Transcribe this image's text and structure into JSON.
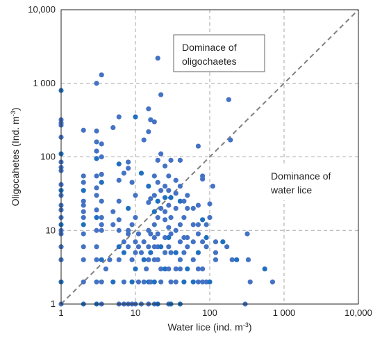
{
  "chart_data": {
    "type": "scatter",
    "title": "",
    "xlabel": "Water lice (ind. m",
    "xlabel_sup": "-3",
    "xlabel_end": ")",
    "ylabel": "Oligocahetes (Ind. m",
    "ylabel_sup": "-3",
    "ylabel_end": ")",
    "xscale": "log",
    "yscale": "log",
    "xlim": [
      1,
      10000
    ],
    "ylim": [
      1,
      10000
    ],
    "grid": "dashed",
    "x_ticks": [
      {
        "value": 1,
        "label": "1"
      },
      {
        "value": 10,
        "label": "10"
      },
      {
        "value": 100,
        "label": "100"
      },
      {
        "value": 1000,
        "label": "1 000"
      },
      {
        "value": 10000,
        "label": "10,000"
      }
    ],
    "y_ticks": [
      {
        "value": 1,
        "label": "1"
      },
      {
        "value": 10,
        "label": "10"
      },
      {
        "value": 100,
        "label": "100"
      },
      {
        "value": 1000,
        "label": "1 000"
      },
      {
        "value": 10000,
        "label": "10,000"
      }
    ],
    "reference_line": {
      "type": "1:1",
      "style": "dashed",
      "color": "#808080"
    },
    "annotations": [
      {
        "lines": [
          "Dominace of",
          "oligochaetes"
        ],
        "boxed": true
      },
      {
        "lines": [
          "Dominance of",
          "water lice"
        ],
        "boxed": false
      }
    ],
    "marker_color": "#4472c4",
    "marker_color_alt": "#1f6fc0",
    "series": [
      {
        "points": [
          [
            1,
            800
          ],
          [
            1,
            320
          ],
          [
            1,
            290
          ],
          [
            1,
            270
          ],
          [
            1,
            185
          ],
          [
            1,
            110
          ],
          [
            1,
            85
          ],
          [
            1,
            72
          ],
          [
            1,
            65
          ],
          [
            1,
            42
          ],
          [
            1,
            35
          ],
          [
            1,
            30
          ],
          [
            1,
            22
          ],
          [
            1,
            19
          ],
          [
            1,
            15
          ],
          [
            1,
            12
          ],
          [
            1,
            10
          ],
          [
            1,
            9
          ],
          [
            1,
            6
          ],
          [
            1,
            4
          ],
          [
            1,
            2
          ],
          [
            1,
            1
          ],
          [
            2,
            230
          ],
          [
            2,
            55
          ],
          [
            2,
            45
          ],
          [
            2,
            35
          ],
          [
            2,
            25
          ],
          [
            2,
            22
          ],
          [
            2,
            18
          ],
          [
            2,
            15
          ],
          [
            2,
            12
          ],
          [
            2,
            9
          ],
          [
            2,
            6
          ],
          [
            2,
            4
          ],
          [
            2,
            2
          ],
          [
            2,
            1
          ],
          [
            3,
            1000
          ],
          [
            3,
            225
          ],
          [
            3,
            160
          ],
          [
            3,
            120
          ],
          [
            3,
            95
          ],
          [
            3,
            55
          ],
          [
            3,
            38
          ],
          [
            3,
            30
          ],
          [
            3,
            19
          ],
          [
            3,
            15
          ],
          [
            3,
            10
          ],
          [
            3,
            6
          ],
          [
            3,
            4
          ],
          [
            3,
            2
          ],
          [
            3,
            1
          ],
          [
            3.5,
            1300
          ],
          [
            3.5,
            150
          ],
          [
            3.5,
            100
          ],
          [
            3.5,
            58
          ],
          [
            3.5,
            45
          ],
          [
            3.5,
            25
          ],
          [
            3.5,
            15
          ],
          [
            3.5,
            12
          ],
          [
            3.5,
            10
          ],
          [
            3.5,
            4
          ],
          [
            3.5,
            2
          ],
          [
            3.5,
            1
          ],
          [
            4,
            3
          ],
          [
            4.5,
            4
          ],
          [
            5,
            2
          ],
          [
            5,
            12
          ],
          [
            5,
            18
          ],
          [
            5,
            250
          ],
          [
            6,
            350
          ],
          [
            6,
            80
          ],
          [
            6,
            48
          ],
          [
            6,
            25
          ],
          [
            6,
            14
          ],
          [
            6,
            10
          ],
          [
            6,
            6
          ],
          [
            6,
            4
          ],
          [
            6,
            1
          ],
          [
            7,
            60
          ],
          [
            7,
            7
          ],
          [
            7,
            5
          ],
          [
            7,
            2
          ],
          [
            7,
            1
          ],
          [
            8,
            85
          ],
          [
            8,
            70
          ],
          [
            8,
            20
          ],
          [
            8,
            10
          ],
          [
            8,
            9
          ],
          [
            8,
            6
          ],
          [
            8,
            1
          ],
          [
            9,
            2
          ],
          [
            9,
            4
          ],
          [
            9,
            12
          ],
          [
            9,
            45
          ],
          [
            9,
            1
          ],
          [
            10,
            350
          ],
          [
            10,
            30
          ],
          [
            10,
            15
          ],
          [
            10,
            7
          ],
          [
            10,
            5
          ],
          [
            10,
            3
          ],
          [
            10,
            1
          ],
          [
            11,
            6
          ],
          [
            11,
            9
          ],
          [
            11,
            2
          ],
          [
            12,
            60
          ],
          [
            12,
            5
          ],
          [
            12,
            1
          ],
          [
            13,
            170
          ],
          [
            13,
            7
          ],
          [
            13,
            4
          ],
          [
            13,
            2
          ],
          [
            14,
            3
          ],
          [
            15,
            450
          ],
          [
            15,
            220
          ],
          [
            15,
            40
          ],
          [
            15,
            24
          ],
          [
            15,
            10
          ],
          [
            15,
            6
          ],
          [
            15,
            4
          ],
          [
            15,
            2
          ],
          [
            15,
            1
          ],
          [
            16,
            320
          ],
          [
            16,
            27
          ],
          [
            16,
            9
          ],
          [
            16,
            5
          ],
          [
            16,
            2
          ],
          [
            18,
            300
          ],
          [
            18,
            55
          ],
          [
            18,
            30
          ],
          [
            18,
            18
          ],
          [
            18,
            12
          ],
          [
            18,
            8
          ],
          [
            18,
            6
          ],
          [
            18,
            4
          ],
          [
            18,
            2
          ],
          [
            18,
            1
          ],
          [
            20,
            2200
          ],
          [
            20,
            90
          ],
          [
            20,
            45
          ],
          [
            20,
            25
          ],
          [
            20,
            15
          ],
          [
            20,
            9
          ],
          [
            20,
            6
          ],
          [
            20,
            4
          ],
          [
            20,
            1
          ],
          [
            22,
            700
          ],
          [
            22,
            110
          ],
          [
            22,
            35
          ],
          [
            22,
            20
          ],
          [
            22,
            6
          ],
          [
            22,
            3
          ],
          [
            22,
            2
          ],
          [
            25,
            75
          ],
          [
            25,
            40
          ],
          [
            25,
            28
          ],
          [
            25,
            18
          ],
          [
            25,
            14
          ],
          [
            25,
            8
          ],
          [
            25,
            5
          ],
          [
            25,
            3
          ],
          [
            28,
            55
          ],
          [
            28,
            35
          ],
          [
            28,
            22
          ],
          [
            28,
            11
          ],
          [
            28,
            8
          ],
          [
            28,
            6
          ],
          [
            28,
            3
          ],
          [
            28,
            1
          ],
          [
            30,
            90
          ],
          [
            30,
            28
          ],
          [
            30,
            15
          ],
          [
            30,
            9
          ],
          [
            30,
            5
          ],
          [
            30,
            2
          ],
          [
            30,
            1
          ],
          [
            35,
            48
          ],
          [
            35,
            32
          ],
          [
            35,
            20
          ],
          [
            35,
            10
          ],
          [
            35,
            5
          ],
          [
            35,
            3
          ],
          [
            35,
            2
          ],
          [
            40,
            90
          ],
          [
            40,
            40
          ],
          [
            40,
            25
          ],
          [
            40,
            12
          ],
          [
            40,
            7
          ],
          [
            40,
            4
          ],
          [
            40,
            3
          ],
          [
            40,
            1
          ],
          [
            45,
            25
          ],
          [
            45,
            15
          ],
          [
            45,
            8
          ],
          [
            45,
            5
          ],
          [
            45,
            2
          ],
          [
            50,
            30
          ],
          [
            50,
            20
          ],
          [
            50,
            8
          ],
          [
            50,
            6
          ],
          [
            50,
            3
          ],
          [
            60,
            20
          ],
          [
            60,
            12
          ],
          [
            60,
            7
          ],
          [
            60,
            4
          ],
          [
            60,
            2
          ],
          [
            70,
            140
          ],
          [
            70,
            22
          ],
          [
            70,
            12
          ],
          [
            70,
            9
          ],
          [
            70,
            5
          ],
          [
            70,
            3
          ],
          [
            70,
            2
          ],
          [
            80,
            55
          ],
          [
            80,
            50
          ],
          [
            80,
            14
          ],
          [
            80,
            7
          ],
          [
            80,
            3
          ],
          [
            80,
            2
          ],
          [
            90,
            12
          ],
          [
            90,
            8
          ],
          [
            90,
            6
          ],
          [
            90,
            2
          ],
          [
            100,
            15
          ],
          [
            100,
            23
          ],
          [
            100,
            2
          ],
          [
            110,
            40
          ],
          [
            120,
            7
          ],
          [
            120,
            5
          ],
          [
            120,
            4
          ],
          [
            150,
            7
          ],
          [
            170,
            6
          ],
          [
            180,
            600
          ],
          [
            190,
            170
          ],
          [
            200,
            4
          ],
          [
            230,
            4
          ],
          [
            300,
            1
          ],
          [
            320,
            9
          ],
          [
            330,
            4
          ],
          [
            350,
            2
          ],
          [
            550,
            3
          ],
          [
            700,
            2
          ]
        ]
      }
    ]
  }
}
